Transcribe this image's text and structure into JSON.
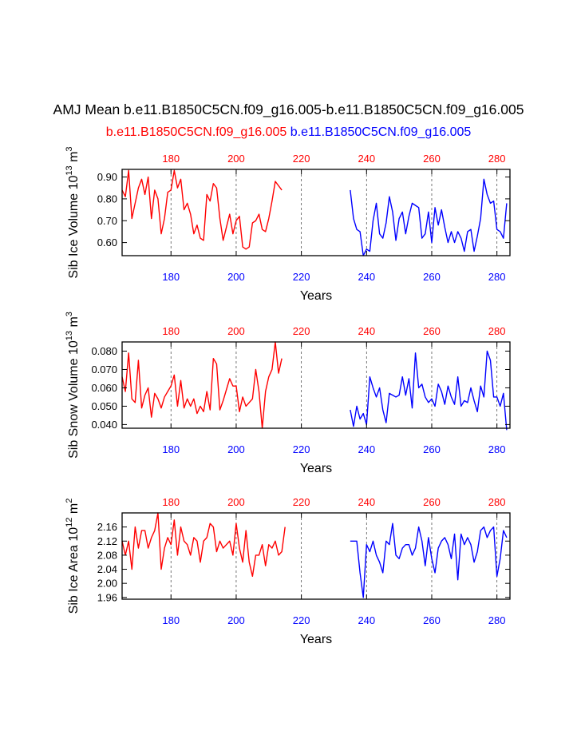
{
  "title": "AMJ Mean b.e11.B1850C5CN.f09_g16.005-b.e11.B1850C5CN.f09_g16.005",
  "subtitle_left": "b.e11.B1850C5CN.f09_g16.005",
  "subtitle_right": "b.e11.B1850C5CN.f09_g16.005",
  "colors": {
    "series_left": "#ff0000",
    "series_right": "#0000ff",
    "axis": "#000000"
  },
  "chart_data": [
    {
      "type": "line",
      "title": "",
      "ylabel": "Sib Ice Volume 10^13 m^3",
      "ylabel_main": "Sib Ice Volume 10",
      "ylabel_exp": "13",
      "ylabel_unit": " m",
      "ylabel_unit_exp": "3",
      "xlabel": "Years",
      "xlim": [
        165,
        284
      ],
      "ylim": [
        0.54,
        0.935
      ],
      "yticks": [
        0.6,
        0.7,
        0.8,
        0.9
      ],
      "ytick_labels": [
        "0.60",
        "0.70",
        "0.80",
        "0.90"
      ],
      "xticks": [
        180,
        200,
        220,
        240,
        260,
        280
      ],
      "top_tick_labels": [
        "180",
        "200",
        "220",
        "240",
        "260",
        "280"
      ],
      "bottom_tick_labels": [
        "180",
        "200",
        "220",
        "240",
        "260",
        "280"
      ],
      "vlines": [
        180,
        200,
        220,
        240,
        260,
        280
      ],
      "series": [
        {
          "name": "b.e11.B1850C5CN.f09_g16.005",
          "color": "#ff0000",
          "x_start": 165,
          "values": [
            0.84,
            0.81,
            0.93,
            0.71,
            0.78,
            0.85,
            0.89,
            0.82,
            0.9,
            0.71,
            0.84,
            0.8,
            0.64,
            0.71,
            0.83,
            0.84,
            0.93,
            0.85,
            0.89,
            0.75,
            0.78,
            0.73,
            0.64,
            0.68,
            0.62,
            0.61,
            0.82,
            0.79,
            0.87,
            0.85,
            0.71,
            0.61,
            0.67,
            0.73,
            0.64,
            0.7,
            0.72,
            0.58,
            0.57,
            0.58,
            0.69,
            0.7,
            0.73,
            0.66,
            0.65,
            0.71,
            0.79,
            0.88,
            0.86,
            0.84
          ]
        },
        {
          "name": "b.e11.B1850C5CN.f09_g16.005",
          "color": "#0000ff",
          "x_start": 235,
          "values": [
            0.84,
            0.71,
            0.66,
            0.65,
            0.54,
            0.57,
            0.56,
            0.7,
            0.78,
            0.64,
            0.62,
            0.69,
            0.81,
            0.74,
            0.61,
            0.71,
            0.74,
            0.64,
            0.72,
            0.78,
            0.77,
            0.76,
            0.62,
            0.64,
            0.74,
            0.6,
            0.76,
            0.68,
            0.75,
            0.67,
            0.6,
            0.65,
            0.6,
            0.65,
            0.62,
            0.56,
            0.65,
            0.66,
            0.56,
            0.63,
            0.71,
            0.89,
            0.82,
            0.78,
            0.79,
            0.66,
            0.65,
            0.62,
            0.78
          ]
        }
      ]
    },
    {
      "type": "line",
      "title": "",
      "ylabel": "Sib Snow Volume 10^13 m^3",
      "ylabel_main": "Sib Snow Volume 10",
      "ylabel_exp": "13",
      "ylabel_unit": " m",
      "ylabel_unit_exp": "3",
      "xlabel": "Years",
      "xlim": [
        165,
        284
      ],
      "ylim": [
        0.038,
        0.085
      ],
      "yticks": [
        0.04,
        0.05,
        0.06,
        0.07,
        0.08
      ],
      "ytick_labels": [
        "0.040",
        "0.050",
        "0.060",
        "0.070",
        "0.080"
      ],
      "xticks": [
        180,
        200,
        220,
        240,
        260,
        280
      ],
      "top_tick_labels": [
        "180",
        "200",
        "220",
        "240",
        "260",
        "280"
      ],
      "bottom_tick_labels": [
        "180",
        "200",
        "220",
        "240",
        "260",
        "280"
      ],
      "vlines": [
        180,
        200,
        220,
        240,
        260,
        280
      ],
      "series": [
        {
          "name": "b.e11.B1850C5CN.f09_g16.005",
          "color": "#ff0000",
          "x_start": 165,
          "values": [
            0.066,
            0.058,
            0.079,
            0.054,
            0.052,
            0.075,
            0.049,
            0.056,
            0.06,
            0.044,
            0.057,
            0.054,
            0.049,
            0.055,
            0.058,
            0.061,
            0.067,
            0.05,
            0.064,
            0.049,
            0.054,
            0.05,
            0.054,
            0.046,
            0.05,
            0.047,
            0.058,
            0.048,
            0.076,
            0.073,
            0.048,
            0.053,
            0.059,
            0.065,
            0.061,
            0.061,
            0.047,
            0.055,
            0.05,
            0.052,
            0.054,
            0.07,
            0.058,
            0.038,
            0.058,
            0.066,
            0.07,
            0.085,
            0.068,
            0.076
          ]
        },
        {
          "name": "b.e11.B1850C5CN.f09_g16.005",
          "color": "#0000ff",
          "x_start": 235,
          "values": [
            0.048,
            0.039,
            0.05,
            0.043,
            0.046,
            0.04,
            0.066,
            0.06,
            0.055,
            0.06,
            0.048,
            0.041,
            0.057,
            0.056,
            0.055,
            0.056,
            0.066,
            0.056,
            0.065,
            0.049,
            0.079,
            0.06,
            0.062,
            0.055,
            0.052,
            0.054,
            0.05,
            0.062,
            0.058,
            0.051,
            0.061,
            0.055,
            0.051,
            0.066,
            0.05,
            0.053,
            0.052,
            0.06,
            0.053,
            0.047,
            0.061,
            0.055,
            0.08,
            0.075,
            0.055,
            0.055,
            0.05,
            0.057,
            0.037
          ]
        }
      ]
    },
    {
      "type": "line",
      "title": "",
      "ylabel": "Sib Ice Area 10^12 m^2",
      "ylabel_main": "Sib Ice Area 10",
      "ylabel_exp": "12",
      "ylabel_unit": " m",
      "ylabel_unit_exp": "2",
      "xlabel": "Years",
      "xlim": [
        165,
        284
      ],
      "ylim": [
        1.955,
        2.2
      ],
      "yticks": [
        1.96,
        2.0,
        2.04,
        2.08,
        2.12,
        2.16
      ],
      "ytick_labels": [
        "1.96",
        "2.00",
        "2.04",
        "2.08",
        "2.12",
        "2.16"
      ],
      "xticks": [
        180,
        200,
        220,
        240,
        260,
        280
      ],
      "top_tick_labels": [
        "180",
        "200",
        "220",
        "240",
        "260",
        "280"
      ],
      "bottom_tick_labels": [
        "180",
        "200",
        "220",
        "240",
        "260",
        "280"
      ],
      "vlines": [
        180,
        200,
        220,
        240,
        260,
        280
      ],
      "series": [
        {
          "name": "b.e11.B1850C5CN.f09_g16.005",
          "color": "#ff0000",
          "x_start": 165,
          "values": [
            2.12,
            2.08,
            2.12,
            2.04,
            2.16,
            2.1,
            2.15,
            2.15,
            2.1,
            2.13,
            2.15,
            2.2,
            2.04,
            2.1,
            2.13,
            2.11,
            2.18,
            2.08,
            2.16,
            2.12,
            2.11,
            2.08,
            2.13,
            2.12,
            2.06,
            2.12,
            2.13,
            2.17,
            2.16,
            2.09,
            2.12,
            2.1,
            2.11,
            2.12,
            2.08,
            2.17,
            2.1,
            2.06,
            2.15,
            2.06,
            2.02,
            2.08,
            2.08,
            2.11,
            2.05,
            2.11,
            2.1,
            2.12,
            2.08,
            2.09,
            2.16
          ]
        },
        {
          "name": "b.e11.B1850C5CN.f09_g16.005",
          "color": "#0000ff",
          "x_start": 235,
          "values": [
            2.12,
            2.12,
            2.12,
            2.03,
            1.96,
            2.11,
            2.09,
            2.12,
            2.08,
            2.06,
            2.03,
            2.12,
            2.11,
            2.17,
            2.08,
            2.07,
            2.1,
            2.11,
            2.11,
            2.08,
            2.1,
            2.16,
            2.12,
            2.05,
            2.13,
            2.07,
            2.03,
            2.1,
            2.12,
            2.13,
            2.11,
            2.07,
            2.14,
            2.01,
            2.14,
            2.11,
            2.13,
            2.11,
            2.06,
            2.09,
            2.15,
            2.16,
            2.13,
            2.15,
            2.16,
            2.02,
            2.07,
            2.15,
            2.13
          ]
        }
      ]
    }
  ]
}
